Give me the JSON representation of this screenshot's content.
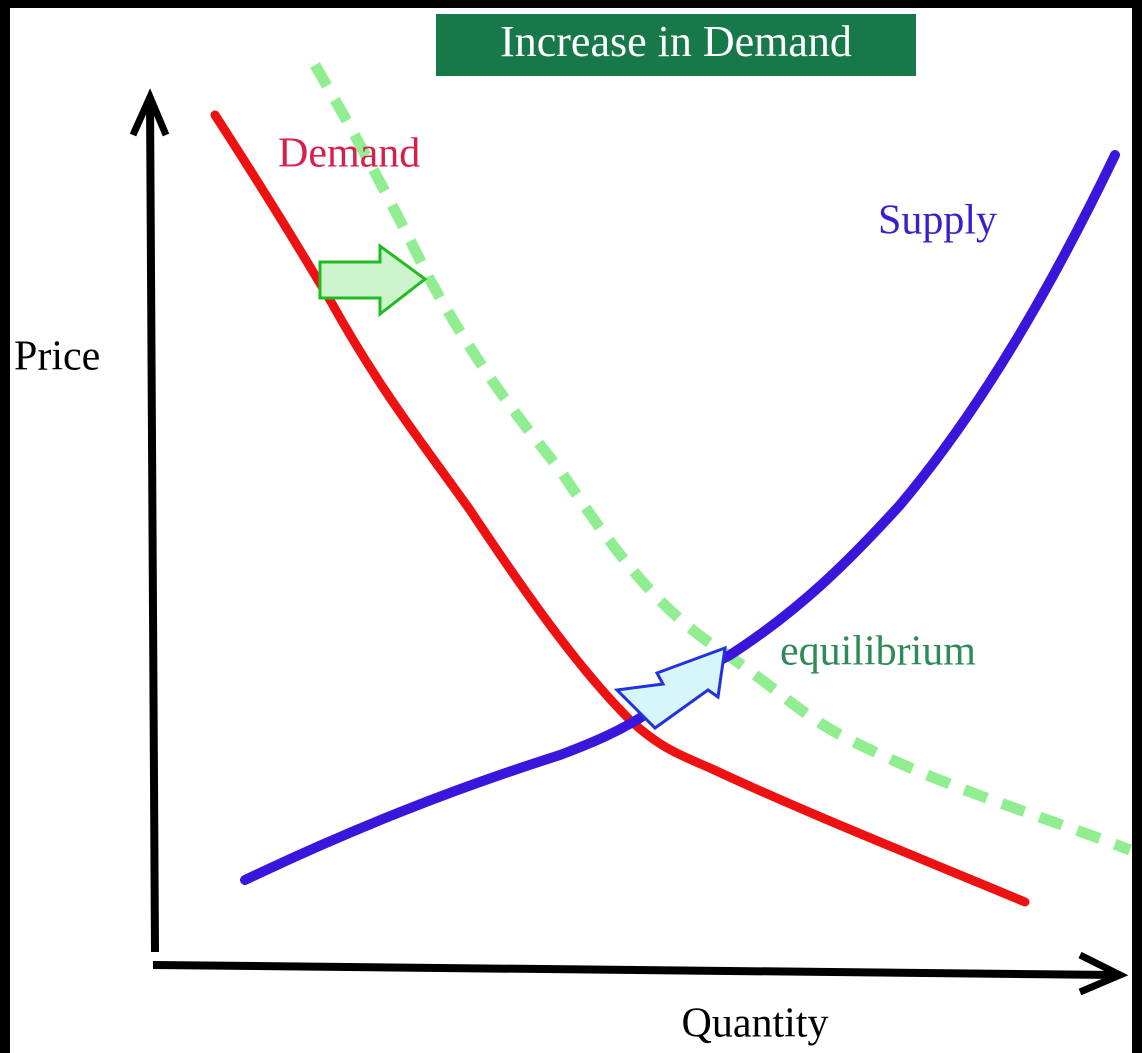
{
  "title": "Increase in Demand",
  "labels": {
    "demand": "Demand",
    "supply": "Supply",
    "equilibrium": "equilibrium"
  },
  "axes": {
    "y": "Price",
    "x": "Quantity"
  }
}
